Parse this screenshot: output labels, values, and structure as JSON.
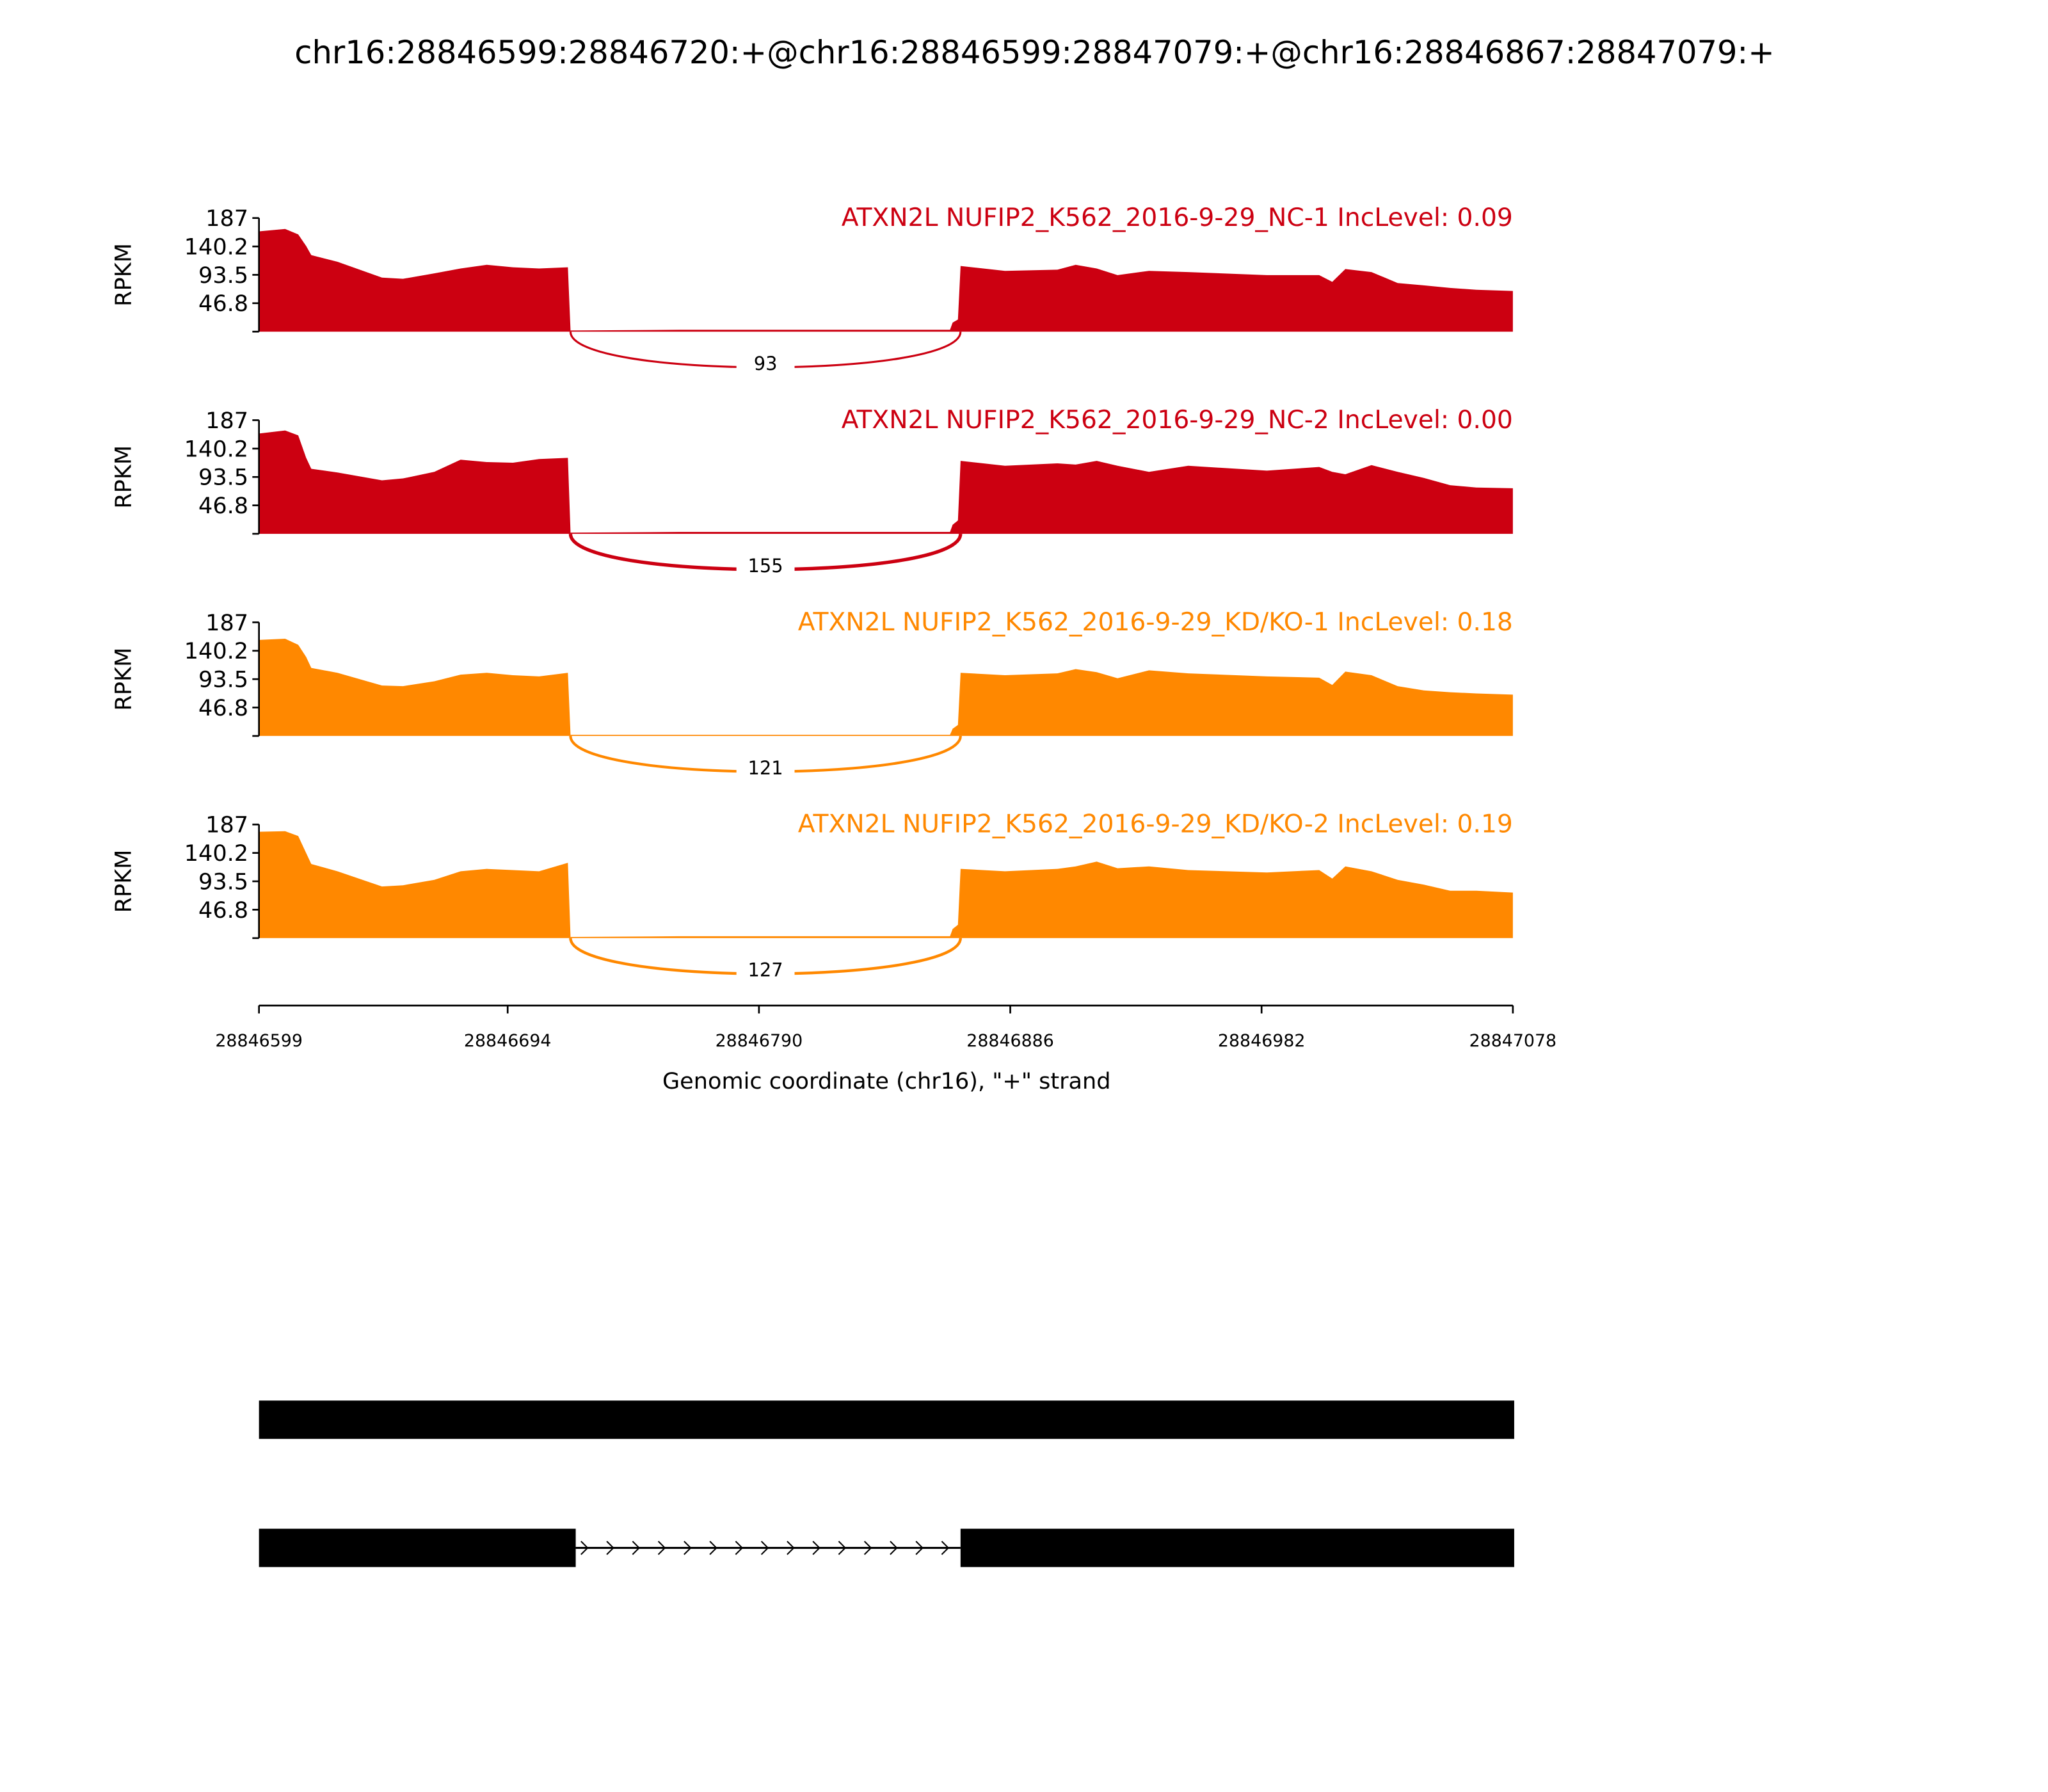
{
  "chart_data": {
    "type": "area",
    "title": "chr16:28846599:28846720:+@chr16:28846599:28847079:+@chr16:28846867:28847079:+",
    "xlabel": "Genomic coordinate (chr16), \"+\" strand",
    "ylabel": "RPKM",
    "xlim": [
      28846599,
      28847078
    ],
    "ylim": [
      0,
      187
    ],
    "yticks": [
      "187",
      "140.2",
      "93.5",
      "46.8"
    ],
    "ytick_values": [
      187,
      140.2,
      93.5,
      46.8
    ],
    "xticks": [
      "28846599",
      "28846694",
      "28846790",
      "28846886",
      "28846982",
      "28847078"
    ],
    "xtick_values": [
      28846599,
      28846694,
      28846790,
      28846886,
      28846982,
      28847078
    ],
    "positions": [
      28846599,
      28846609,
      28846614,
      28846617,
      28846619,
      28846629,
      28846646,
      28846654,
      28846666,
      28846676,
      28846686,
      28846696,
      28846706,
      28846717,
      28846718,
      28846760,
      28846820,
      28846863,
      28846864,
      28846866,
      28846867,
      28846884,
      28846904,
      28846911,
      28846919,
      28846927,
      28846939,
      28846954,
      28846984,
      28847004,
      28847009,
      28847014,
      28847024,
      28847034,
      28847044,
      28847054,
      28847064,
      28847078
    ],
    "junction": {
      "start": 28846718,
      "end": 28846867
    },
    "series": [
      {
        "name": "ATXN2L NUFIP2_K562_2016-9-29_NC-1 IncLevel: 0.09",
        "color": "#cc0011",
        "junction_count": "93",
        "values": [
          165,
          169,
          160,
          141,
          126,
          115,
          89,
          87,
          96,
          104,
          110,
          106,
          104,
          106,
          2,
          3,
          3,
          3,
          15,
          20,
          108,
          100,
          102,
          110,
          104,
          93,
          100,
          98,
          93,
          93,
          82,
          103,
          98,
          80,
          76,
          72,
          69,
          67
        ]
      },
      {
        "name": "ATXN2L NUFIP2_K562_2016-9-29_NC-2 IncLevel: 0.00",
        "color": "#cc0011",
        "junction_count": "155",
        "values": [
          165,
          170,
          162,
          125,
          107,
          101,
          88,
          91,
          102,
          122,
          118,
          117,
          123,
          125,
          2,
          3,
          3,
          3,
          15,
          22,
          120,
          112,
          116,
          114,
          120,
          112,
          102,
          112,
          104,
          110,
          102,
          98,
          113,
          102,
          92,
          80,
          76,
          75
        ]
      },
      {
        "name": "ATXN2L NUFIP2_K562_2016-9-29_KD/KO-1 IncLevel: 0.18",
        "color": "#ff8800",
        "junction_count": "121",
        "values": [
          158,
          160,
          150,
          130,
          112,
          104,
          83,
          82,
          90,
          101,
          104,
          100,
          98,
          104,
          2,
          2,
          2,
          2,
          12,
          18,
          104,
          100,
          103,
          110,
          105,
          95,
          108,
          103,
          98,
          96,
          84,
          106,
          100,
          82,
          75,
          72,
          70,
          68
        ]
      },
      {
        "name": "ATXN2L NUFIP2_K562_2016-9-29_KD/KO-2 IncLevel: 0.19",
        "color": "#ff8800",
        "junction_count": "127",
        "values": [
          175,
          176,
          168,
          140,
          122,
          110,
          85,
          87,
          96,
          110,
          114,
          112,
          110,
          124,
          2,
          3,
          3,
          3,
          15,
          22,
          114,
          110,
          114,
          118,
          126,
          115,
          118,
          112,
          108,
          112,
          98,
          118,
          110,
          96,
          88,
          78,
          78,
          75
        ]
      }
    ],
    "gene_models": [
      {
        "exons": [
          [
            28846599,
            28847079
          ]
        ]
      },
      {
        "exons": [
          [
            28846599,
            28846720
          ],
          [
            28846867,
            28847079
          ]
        ]
      }
    ]
  }
}
